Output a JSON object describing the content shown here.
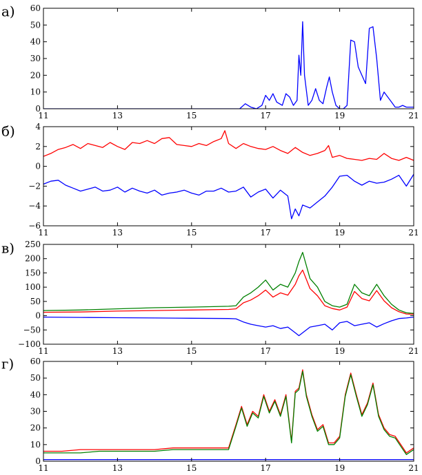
{
  "chart_data": [
    {
      "panel_label": "а)",
      "type": "line",
      "xlim": [
        11,
        21
      ],
      "ylim": [
        0,
        60
      ],
      "xticks": [
        "11",
        "13",
        "15",
        "17",
        "19",
        "21"
      ],
      "yticks": [
        "0",
        "10",
        "20",
        "30",
        "40",
        "50",
        "60"
      ],
      "series": [
        {
          "name": "blue",
          "color": "#0000ff",
          "x": [
            11,
            16.3,
            16.45,
            16.6,
            16.75,
            16.9,
            17.0,
            17.1,
            17.2,
            17.3,
            17.45,
            17.55,
            17.65,
            17.75,
            17.85,
            17.9,
            17.95,
            18.0,
            18.05,
            18.15,
            18.25,
            18.35,
            18.45,
            18.55,
            18.65,
            18.72,
            18.8,
            18.9,
            19.0,
            19.1,
            19.2,
            19.3,
            19.4,
            19.5,
            19.6,
            19.7,
            19.8,
            19.9,
            20.0,
            20.1,
            20.2,
            20.3,
            20.4,
            20.5,
            20.6,
            20.7,
            20.8,
            20.9,
            21.0
          ],
          "y": [
            0,
            0,
            3,
            1,
            0,
            2,
            8,
            5,
            9,
            4,
            2,
            9,
            7,
            2,
            5,
            32,
            20,
            52,
            20,
            2,
            5,
            12,
            5,
            3,
            13,
            19,
            10,
            2,
            0,
            0,
            2,
            41,
            40,
            25,
            20,
            15,
            48,
            49,
            30,
            5,
            10,
            7,
            4,
            1,
            1,
            2,
            1,
            1,
            1
          ]
        }
      ]
    },
    {
      "panel_label": "б)",
      "type": "line",
      "xlim": [
        11,
        21
      ],
      "ylim": [
        -6,
        4
      ],
      "xticks": [
        "11",
        "13",
        "15",
        "17",
        "19",
        "21"
      ],
      "yticks": [
        "−6",
        "−4",
        "−2",
        "0",
        "2",
        "4"
      ],
      "series": [
        {
          "name": "red",
          "color": "#ff0000",
          "x": [
            11.0,
            11.2,
            11.4,
            11.6,
            11.8,
            12.0,
            12.2,
            12.4,
            12.6,
            12.8,
            13.0,
            13.2,
            13.4,
            13.6,
            13.8,
            14.0,
            14.2,
            14.4,
            14.6,
            14.8,
            15.0,
            15.2,
            15.4,
            15.6,
            15.8,
            15.9,
            16.0,
            16.2,
            16.4,
            16.6,
            16.8,
            17.0,
            17.2,
            17.4,
            17.6,
            17.8,
            18.0,
            18.2,
            18.4,
            18.6,
            18.7,
            18.8,
            19.0,
            19.2,
            19.4,
            19.6,
            19.8,
            20.0,
            20.2,
            20.4,
            20.6,
            20.8,
            21.0
          ],
          "y": [
            1.0,
            1.3,
            1.7,
            1.9,
            2.2,
            1.8,
            2.3,
            2.1,
            1.9,
            2.4,
            2.0,
            1.7,
            2.4,
            2.3,
            2.6,
            2.3,
            2.8,
            2.9,
            2.2,
            2.1,
            2.0,
            2.3,
            2.1,
            2.5,
            2.8,
            3.6,
            2.3,
            1.8,
            2.3,
            2.0,
            1.8,
            1.7,
            2.0,
            1.6,
            1.3,
            1.9,
            1.4,
            1.1,
            1.3,
            1.6,
            2.1,
            0.9,
            1.1,
            0.8,
            0.7,
            0.6,
            0.8,
            0.7,
            1.3,
            0.8,
            0.6,
            0.9,
            0.6
          ]
        },
        {
          "name": "blue",
          "color": "#0000ff",
          "x": [
            11.0,
            11.2,
            11.4,
            11.6,
            11.8,
            12.0,
            12.2,
            12.4,
            12.6,
            12.8,
            13.0,
            13.2,
            13.4,
            13.6,
            13.8,
            14.0,
            14.2,
            14.4,
            14.6,
            14.8,
            15.0,
            15.2,
            15.4,
            15.6,
            15.8,
            16.0,
            16.2,
            16.4,
            16.6,
            16.8,
            17.0,
            17.2,
            17.4,
            17.6,
            17.7,
            17.8,
            17.9,
            18.0,
            18.2,
            18.4,
            18.6,
            18.8,
            19.0,
            19.2,
            19.4,
            19.6,
            19.8,
            20.0,
            20.2,
            20.4,
            20.6,
            20.8,
            21.0
          ],
          "y": [
            -1.8,
            -1.5,
            -1.4,
            -1.9,
            -2.2,
            -2.5,
            -2.3,
            -2.1,
            -2.5,
            -2.4,
            -2.1,
            -2.6,
            -2.2,
            -2.5,
            -2.7,
            -2.4,
            -2.9,
            -2.7,
            -2.6,
            -2.4,
            -2.7,
            -2.9,
            -2.5,
            -2.5,
            -2.2,
            -2.6,
            -2.5,
            -2.1,
            -3.1,
            -2.6,
            -2.3,
            -3.2,
            -2.4,
            -3.0,
            -5.3,
            -4.3,
            -5.0,
            -3.9,
            -4.2,
            -3.6,
            -3.0,
            -2.1,
            -1.0,
            -0.9,
            -1.5,
            -1.9,
            -1.5,
            -1.7,
            -1.6,
            -1.3,
            -0.9,
            -2.0,
            -0.8
          ]
        }
      ]
    },
    {
      "panel_label": "в)",
      "type": "line",
      "xlim": [
        11,
        21
      ],
      "ylim": [
        -100,
        250
      ],
      "xticks": [
        "11",
        "13",
        "15",
        "17",
        "19",
        "21"
      ],
      "yticks": [
        "−100",
        "−50",
        "0",
        "50",
        "100",
        "150",
        "200",
        "250"
      ],
      "series": [
        {
          "name": "green",
          "color": "#008000",
          "x": [
            11.0,
            12.0,
            13.0,
            14.0,
            15.0,
            16.0,
            16.2,
            16.4,
            16.6,
            16.8,
            17.0,
            17.2,
            17.4,
            17.6,
            17.8,
            17.9,
            18.0,
            18.2,
            18.4,
            18.6,
            18.8,
            19.0,
            19.2,
            19.4,
            19.6,
            19.8,
            20.0,
            20.2,
            20.4,
            20.6,
            20.8,
            21.0
          ],
          "y": [
            18,
            20,
            24,
            28,
            30,
            33,
            35,
            65,
            80,
            100,
            125,
            90,
            110,
            100,
            150,
            190,
            222,
            130,
            100,
            50,
            35,
            30,
            40,
            110,
            80,
            70,
            110,
            70,
            40,
            20,
            10,
            8
          ]
        },
        {
          "name": "red",
          "color": "#ff0000",
          "x": [
            11.0,
            12.0,
            13.0,
            14.0,
            15.0,
            16.0,
            16.2,
            16.4,
            16.6,
            16.8,
            17.0,
            17.2,
            17.4,
            17.6,
            17.8,
            17.9,
            18.0,
            18.2,
            18.4,
            18.6,
            18.8,
            19.0,
            19.2,
            19.4,
            19.6,
            19.8,
            20.0,
            20.2,
            20.4,
            20.6,
            20.8,
            21.0
          ],
          "y": [
            12,
            13,
            16,
            18,
            20,
            22,
            24,
            45,
            55,
            70,
            90,
            65,
            80,
            72,
            110,
            140,
            160,
            95,
            70,
            35,
            25,
            20,
            30,
            85,
            60,
            52,
            88,
            52,
            28,
            14,
            6,
            5
          ]
        },
        {
          "name": "blue",
          "color": "#0000ff",
          "x": [
            11.0,
            12.0,
            13.0,
            14.0,
            15.0,
            16.0,
            16.2,
            16.4,
            16.6,
            16.8,
            17.0,
            17.2,
            17.4,
            17.6,
            17.8,
            17.9,
            18.0,
            18.2,
            18.4,
            18.6,
            18.8,
            19.0,
            19.2,
            19.4,
            19.6,
            19.8,
            20.0,
            20.2,
            20.4,
            20.6,
            20.8,
            21.0
          ],
          "y": [
            -5,
            -6,
            -7,
            -8,
            -9,
            -10,
            -11,
            -22,
            -30,
            -35,
            -40,
            -35,
            -45,
            -40,
            -60,
            -70,
            -60,
            -40,
            -35,
            -30,
            -50,
            -25,
            -20,
            -35,
            -30,
            -25,
            -40,
            -28,
            -18,
            -10,
            -8,
            -5
          ]
        }
      ]
    },
    {
      "panel_label": "г)",
      "type": "line",
      "xlim": [
        11,
        21
      ],
      "ylim": [
        0,
        60
      ],
      "xticks": [
        "11",
        "13",
        "15",
        "17",
        "19",
        "21"
      ],
      "yticks": [
        "0",
        "10",
        "20",
        "30",
        "40",
        "50",
        "60"
      ],
      "series": [
        {
          "name": "red",
          "color": "#ff0000",
          "x": [
            11.0,
            11.5,
            12.0,
            12.5,
            13.0,
            13.5,
            14.0,
            14.5,
            15.0,
            15.5,
            16.0,
            16.2,
            16.35,
            16.5,
            16.65,
            16.8,
            16.95,
            17.1,
            17.25,
            17.4,
            17.55,
            17.7,
            17.8,
            17.9,
            18.0,
            18.1,
            18.25,
            18.4,
            18.55,
            18.7,
            18.85,
            19.0,
            19.15,
            19.3,
            19.45,
            19.6,
            19.75,
            19.9,
            20.05,
            20.2,
            20.35,
            20.5,
            20.65,
            20.8,
            21.0
          ],
          "y": [
            6,
            6,
            7,
            7,
            7,
            7,
            7,
            8,
            8,
            8,
            8,
            22,
            33,
            22,
            30,
            27,
            40,
            30,
            37,
            28,
            40,
            12,
            42,
            44,
            55,
            40,
            28,
            19,
            22,
            11,
            11,
            15,
            40,
            53,
            40,
            28,
            35,
            47,
            28,
            20,
            16,
            15,
            10,
            5,
            8
          ]
        },
        {
          "name": "green",
          "color": "#008000",
          "x": [
            11.0,
            11.5,
            12.0,
            12.5,
            13.0,
            13.5,
            14.0,
            14.5,
            15.0,
            15.5,
            16.0,
            16.2,
            16.35,
            16.5,
            16.65,
            16.8,
            16.95,
            17.1,
            17.25,
            17.4,
            17.55,
            17.7,
            17.8,
            17.9,
            18.0,
            18.1,
            18.25,
            18.4,
            18.55,
            18.7,
            18.85,
            19.0,
            19.15,
            19.3,
            19.45,
            19.6,
            19.75,
            19.9,
            20.05,
            20.2,
            20.35,
            20.5,
            20.65,
            20.8,
            21.0
          ],
          "y": [
            5,
            5,
            5,
            6,
            6,
            6,
            6,
            7,
            7,
            7,
            7,
            21,
            32,
            21,
            29,
            26,
            39,
            29,
            36,
            27,
            39,
            11,
            41,
            43,
            54,
            39,
            27,
            18,
            21,
            10,
            10,
            14,
            39,
            52,
            39,
            27,
            34,
            46,
            27,
            19,
            15,
            14,
            9,
            4,
            7
          ]
        },
        {
          "name": "blue",
          "color": "#0000ff",
          "x": [
            11.0,
            13.0,
            15.0,
            17.0,
            18.0,
            19.0,
            20.0,
            21.0
          ],
          "y": [
            1.0,
            1.0,
            1.0,
            1.0,
            1.0,
            1.0,
            1.0,
            1.0
          ]
        }
      ]
    }
  ]
}
